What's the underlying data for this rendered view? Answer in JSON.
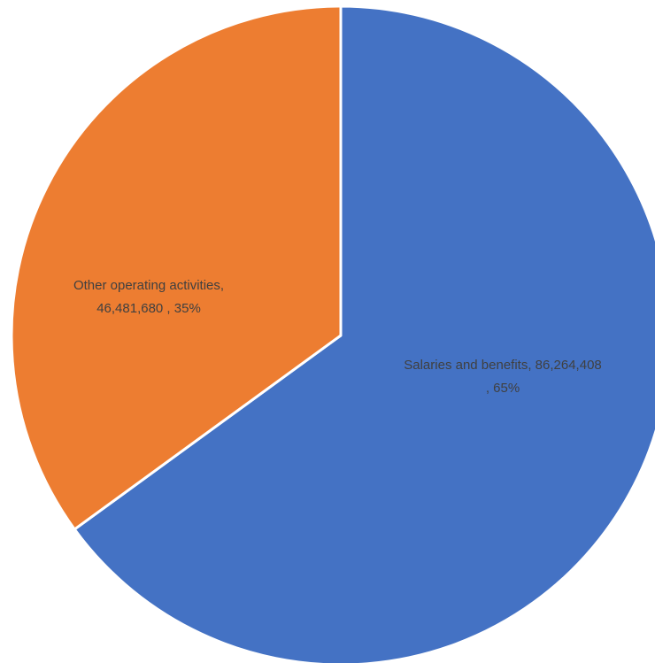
{
  "chart_data": {
    "type": "pie",
    "title": "",
    "series": [
      {
        "values": [
          86264408,
          46481680
        ],
        "categories": [
          "Salaries and benefits",
          "Other operating activities"
        ]
      }
    ],
    "slices": [
      {
        "name": "Salaries and benefits",
        "value": 86264408,
        "percent": 65,
        "color": "#4472C4",
        "label_line1": "Salaries and benefits,  86,264,408",
        "label_line2": ", 65%"
      },
      {
        "name": "Other operating activities",
        "value": 46481680,
        "percent": 35,
        "color": "#ED7D31",
        "label_line1": "Other operating activities,",
        "label_line2": "46,481,680 , 35%"
      }
    ],
    "label_color": "#404040",
    "start_angle": "12 o'clock",
    "direction": "clockwise",
    "legend": "none"
  }
}
